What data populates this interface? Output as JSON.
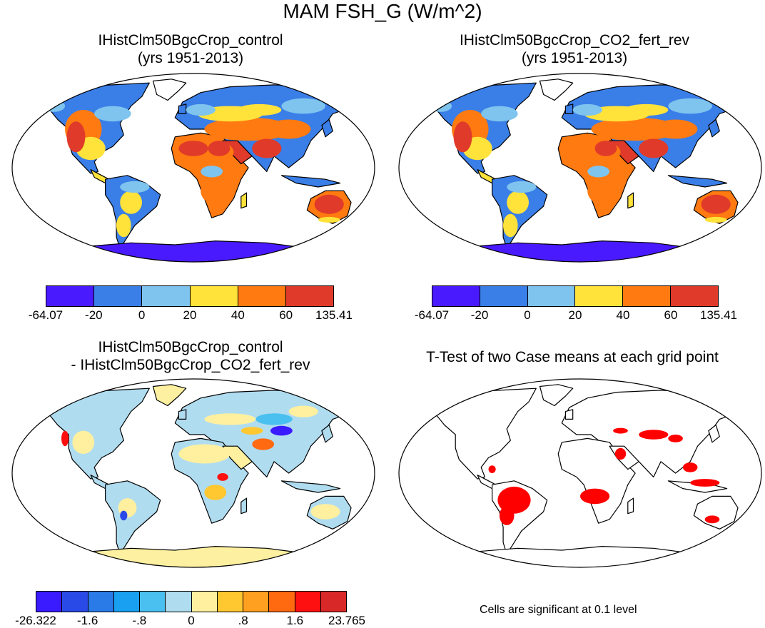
{
  "main_title": "MAM FSH_G (W/m^2)",
  "panels": {
    "top_left": {
      "title_line1": "IHistClm50BgcCrop_control",
      "title_line2": "(yrs 1951-2013)"
    },
    "top_right": {
      "title_line1": "IHistClm50BgcCrop_CO2_fert_rev",
      "title_line2": "(yrs 1951-2013)"
    },
    "bottom_left": {
      "title_line1": "IHistClm50BgcCrop_control",
      "title_line2": "- IHistClm50BgcCrop_CO2_fert_rev"
    },
    "bottom_right": {
      "title_line1": "T-Test of two Case means at each grid point"
    }
  },
  "colorbar_abs": {
    "colors": [
      "#4a1aff",
      "#3a7ee8",
      "#7ec4ee",
      "#ffe23a",
      "#ff7a10",
      "#e03a2a"
    ],
    "labels": [
      "-64.07",
      "-20",
      "0",
      "20",
      "40",
      "60",
      "135.41"
    ]
  },
  "colorbar_diff": {
    "colors": [
      "#3a1aff",
      "#2a4ae8",
      "#2a7ae8",
      "#1aa0f0",
      "#4ac0f0",
      "#b0dcf0",
      "#fff0a0",
      "#ffc830",
      "#ffa020",
      "#ff6a10",
      "#ff1010",
      "#d82828"
    ],
    "labels": [
      "-26.322",
      "-1.6",
      "-.8",
      "0",
      ".8",
      "1.6",
      "23.765"
    ]
  },
  "significance_note": "Cells are significant at 0.1 level",
  "colors": {
    "ocean": "#ffffff",
    "coast": "#000000",
    "antarctica_abs": "#4a1aff",
    "antarctica_diff": "#fdf0a0",
    "greenland_diff": "#fdf0a0",
    "sig": "#ff0000"
  }
}
